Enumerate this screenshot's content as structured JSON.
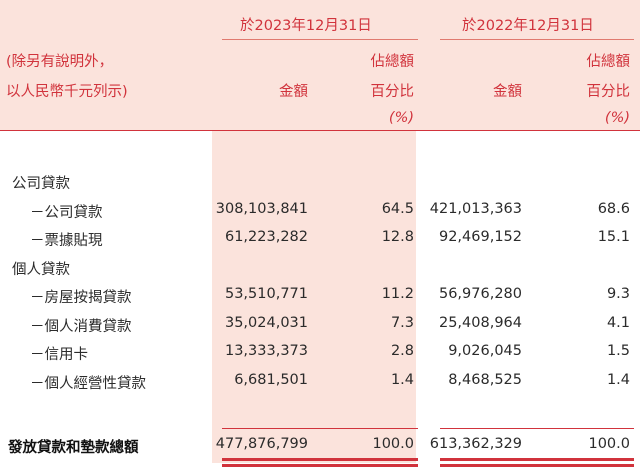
{
  "header": {
    "period_2023": "於2023年12月31日",
    "period_2022": "於2022年12月31日",
    "note_line1": "(除另有說明外，",
    "note_line2": "以人民幣千元列示)",
    "col_amount": "金額",
    "col_pct_line1": "佔總額",
    "col_pct_line2": "百分比",
    "pct_unit": "(%)"
  },
  "rows": [
    {
      "label": "公司貸款",
      "indent": false,
      "a2023": "",
      "p2023": "",
      "a2022": "",
      "p2022": ""
    },
    {
      "label": "－公司貸款",
      "indent": true,
      "a2023": "308,103,841",
      "p2023": "64.5",
      "a2022": "421,013,363",
      "p2022": "68.6"
    },
    {
      "label": "－票據貼現",
      "indent": true,
      "a2023": "61,223,282",
      "p2023": "12.8",
      "a2022": "92,469,152",
      "p2022": "15.1"
    },
    {
      "label": "個人貸款",
      "indent": false,
      "a2023": "",
      "p2023": "",
      "a2022": "",
      "p2022": ""
    },
    {
      "label": "－房屋按揭貸款",
      "indent": true,
      "a2023": "53,510,771",
      "p2023": "11.2",
      "a2022": "56,976,280",
      "p2022": "9.3"
    },
    {
      "label": "－個人消費貸款",
      "indent": true,
      "a2023": "35,024,031",
      "p2023": "7.3",
      "a2022": "25,408,964",
      "p2022": "4.1"
    },
    {
      "label": "－信用卡",
      "indent": true,
      "a2023": "13,333,373",
      "p2023": "2.8",
      "a2022": "9,026,045",
      "p2022": "1.5"
    },
    {
      "label": "－個人經營性貸款",
      "indent": true,
      "a2023": "6,681,501",
      "p2023": "1.4",
      "a2022": "8,468,525",
      "p2022": "1.4"
    }
  ],
  "total": {
    "label": "發放貸款和墊款總額",
    "a2023": "477,876,799",
    "p2023": "100.0",
    "a2022": "613,362,329",
    "p2022": "100.0"
  },
  "colors": {
    "accent": "#d1333c",
    "shade": "#fbe3dc"
  }
}
